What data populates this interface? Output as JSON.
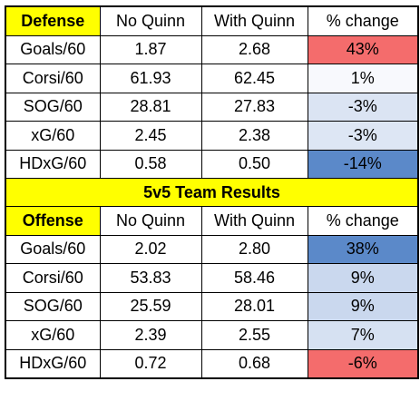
{
  "chart_data": {
    "type": "table",
    "banner": "5v5 Team Results",
    "columns": [
      "No Quinn",
      "With Quinn",
      "% change"
    ],
    "sections": [
      {
        "title": "Defense",
        "rows": [
          {
            "label": "Goals/60",
            "no_quinn": "1.87",
            "with_quinn": "2.68",
            "change": "43%",
            "change_color": "#f46c6c"
          },
          {
            "label": "Corsi/60",
            "no_quinn": "61.93",
            "with_quinn": "62.45",
            "change": "1%",
            "change_color": "#f8f9fd"
          },
          {
            "label": "SOG/60",
            "no_quinn": "28.81",
            "with_quinn": "27.83",
            "change": "-3%",
            "change_color": "#dbe4f3"
          },
          {
            "label": "xG/60",
            "no_quinn": "2.45",
            "with_quinn": "2.38",
            "change": "-3%",
            "change_color": "#dde6f4"
          },
          {
            "label": "HDxG/60",
            "no_quinn": "0.58",
            "with_quinn": "0.50",
            "change": "-14%",
            "change_color": "#5b89c9"
          }
        ]
      },
      {
        "title": "Offense",
        "rows": [
          {
            "label": "Goals/60",
            "no_quinn": "2.02",
            "with_quinn": "2.80",
            "change": "38%",
            "change_color": "#5b89c9"
          },
          {
            "label": "Corsi/60",
            "no_quinn": "53.83",
            "with_quinn": "58.46",
            "change": "9%",
            "change_color": "#cad8ee"
          },
          {
            "label": "SOG/60",
            "no_quinn": "25.59",
            "with_quinn": "28.01",
            "change": "9%",
            "change_color": "#cad8ee"
          },
          {
            "label": "xG/60",
            "no_quinn": "2.39",
            "with_quinn": "2.55",
            "change": "7%",
            "change_color": "#d6e1f2"
          },
          {
            "label": "HDxG/60",
            "no_quinn": "0.72",
            "with_quinn": "0.68",
            "change": "-6%",
            "change_color": "#f46c6c"
          }
        ]
      }
    ]
  }
}
